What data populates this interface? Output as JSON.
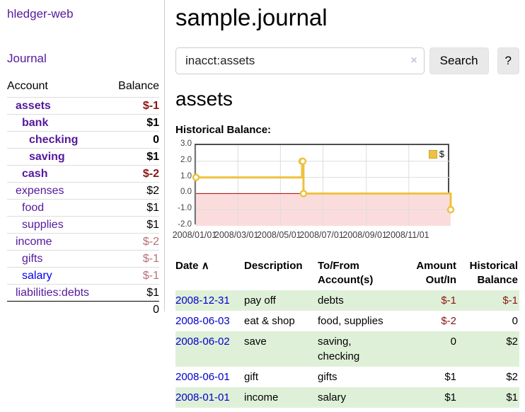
{
  "brand": "hledger-web",
  "nav": {
    "journal": "Journal"
  },
  "sidebar": {
    "col_account": "Account",
    "col_balance": "Balance",
    "rows": [
      {
        "name": "assets",
        "balance": "$-1"
      },
      {
        "name": "bank",
        "balance": "$1"
      },
      {
        "name": "checking",
        "balance": "0"
      },
      {
        "name": "saving",
        "balance": "$1"
      },
      {
        "name": "cash",
        "balance": "$-2"
      },
      {
        "name": "expenses",
        "balance": "$2"
      },
      {
        "name": "food",
        "balance": "$1"
      },
      {
        "name": "supplies",
        "balance": "$1"
      },
      {
        "name": "income",
        "balance": "$-2"
      },
      {
        "name": "gifts",
        "balance": "$-1"
      },
      {
        "name": "salary",
        "balance": "$-1"
      },
      {
        "name": "liabilities:debts",
        "balance": "$1"
      }
    ],
    "total": "0"
  },
  "header": {
    "title": "sample.journal"
  },
  "search": {
    "value": "inacct:assets",
    "clear": "×",
    "button": "Search",
    "help": "?"
  },
  "account": {
    "title": "assets",
    "chart_heading": "Historical Balance:"
  },
  "chart_data": {
    "type": "line",
    "step": true,
    "title": "Historical Balance",
    "series": [
      {
        "name": "$",
        "color": "#edc240",
        "points": [
          [
            "2008-01-01",
            1
          ],
          [
            "2008-06-01",
            2
          ],
          [
            "2008-06-02",
            2
          ],
          [
            "2008-06-03",
            0
          ],
          [
            "2008-12-31",
            -1
          ]
        ]
      }
    ],
    "x_range": [
      "2008-01-01",
      "2008-12-31"
    ],
    "ylim": [
      -2,
      3
    ],
    "y_ticks": [
      {
        "v": 3,
        "label": "3.0"
      },
      {
        "v": 2,
        "label": "2.0"
      },
      {
        "v": 1,
        "label": "1.0"
      },
      {
        "v": 0,
        "label": "0.0"
      },
      {
        "v": -1,
        "label": "-1.0"
      },
      {
        "v": -2,
        "label": "-2.0"
      }
    ],
    "x_ticks": [
      {
        "date": "2008-01-01",
        "label": "2008/01/01"
      },
      {
        "date": "2008-03-01",
        "label": "2008/03/01"
      },
      {
        "date": "2008-05-01",
        "label": "2008/05/01"
      },
      {
        "date": "2008-07-01",
        "label": "2008/07/01"
      },
      {
        "date": "2008-09-01",
        "label": "2008/09/01"
      },
      {
        "date": "2008-11-01",
        "label": "2008/11/01"
      }
    ],
    "grid": true,
    "legend": {
      "label": "$",
      "position": "top-right"
    },
    "zero_line_color": "#aa0000",
    "negative_region_color": "#fbdcdd",
    "gridline_color": "#dddddd"
  },
  "register": {
    "headers": {
      "date": "Date",
      "sort_indicator": "∧",
      "description": "Description",
      "accounts": "To/From Account(s)",
      "amount": "Amount Out/In",
      "balance": "Historical Balance"
    },
    "rows": [
      {
        "date": "2008-12-31",
        "description": "pay off",
        "accounts": "debts",
        "amount": "$-1",
        "balance": "$-1"
      },
      {
        "date": "2008-06-03",
        "description": "eat & shop",
        "accounts": "food, supplies",
        "amount": "$-2",
        "balance": "0"
      },
      {
        "date": "2008-06-02",
        "description": "save",
        "accounts": "saving, checking",
        "amount": "0",
        "balance": "$2"
      },
      {
        "date": "2008-06-01",
        "description": "gift",
        "accounts": "gifts",
        "amount": "$1",
        "balance": "$2"
      },
      {
        "date": "2008-01-01",
        "description": "income",
        "accounts": "salary",
        "amount": "$1",
        "balance": "$1"
      }
    ]
  }
}
